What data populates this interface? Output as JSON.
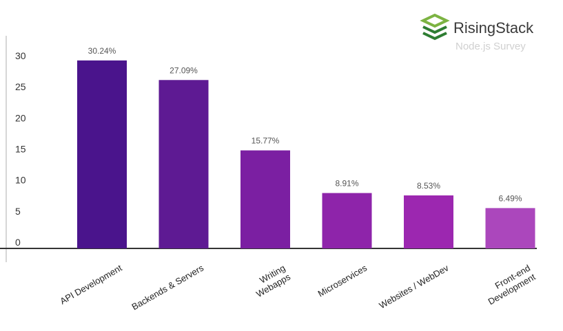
{
  "brand": {
    "name": "RisingStack",
    "subtitle": "Node.js Survey",
    "logo_colors": [
      "#7cb342",
      "#2e7d32"
    ]
  },
  "chart_data": {
    "type": "bar",
    "title": "",
    "xlabel": "",
    "ylabel": "",
    "ylim": [
      0,
      30
    ],
    "yticks": [
      0,
      5,
      10,
      15,
      20,
      25,
      30
    ],
    "grid": false,
    "categories": [
      [
        "API Development"
      ],
      [
        "Backends & Servers"
      ],
      [
        "Writing",
        "Webapps"
      ],
      [
        "Microservices"
      ],
      [
        "Websites / WebDev"
      ],
      [
        "Front-end",
        "Development"
      ]
    ],
    "values": [
      30.24,
      27.09,
      15.77,
      8.91,
      8.53,
      6.49
    ],
    "data_labels": [
      "30.24%",
      "27.09%",
      "15.77%",
      "8.91%",
      "8.53%",
      "6.49%"
    ],
    "bar_colors": [
      "#4a148c",
      "#5e1a93",
      "#7b1fa2",
      "#8e24aa",
      "#9c27b0",
      "#ab47bc"
    ]
  }
}
